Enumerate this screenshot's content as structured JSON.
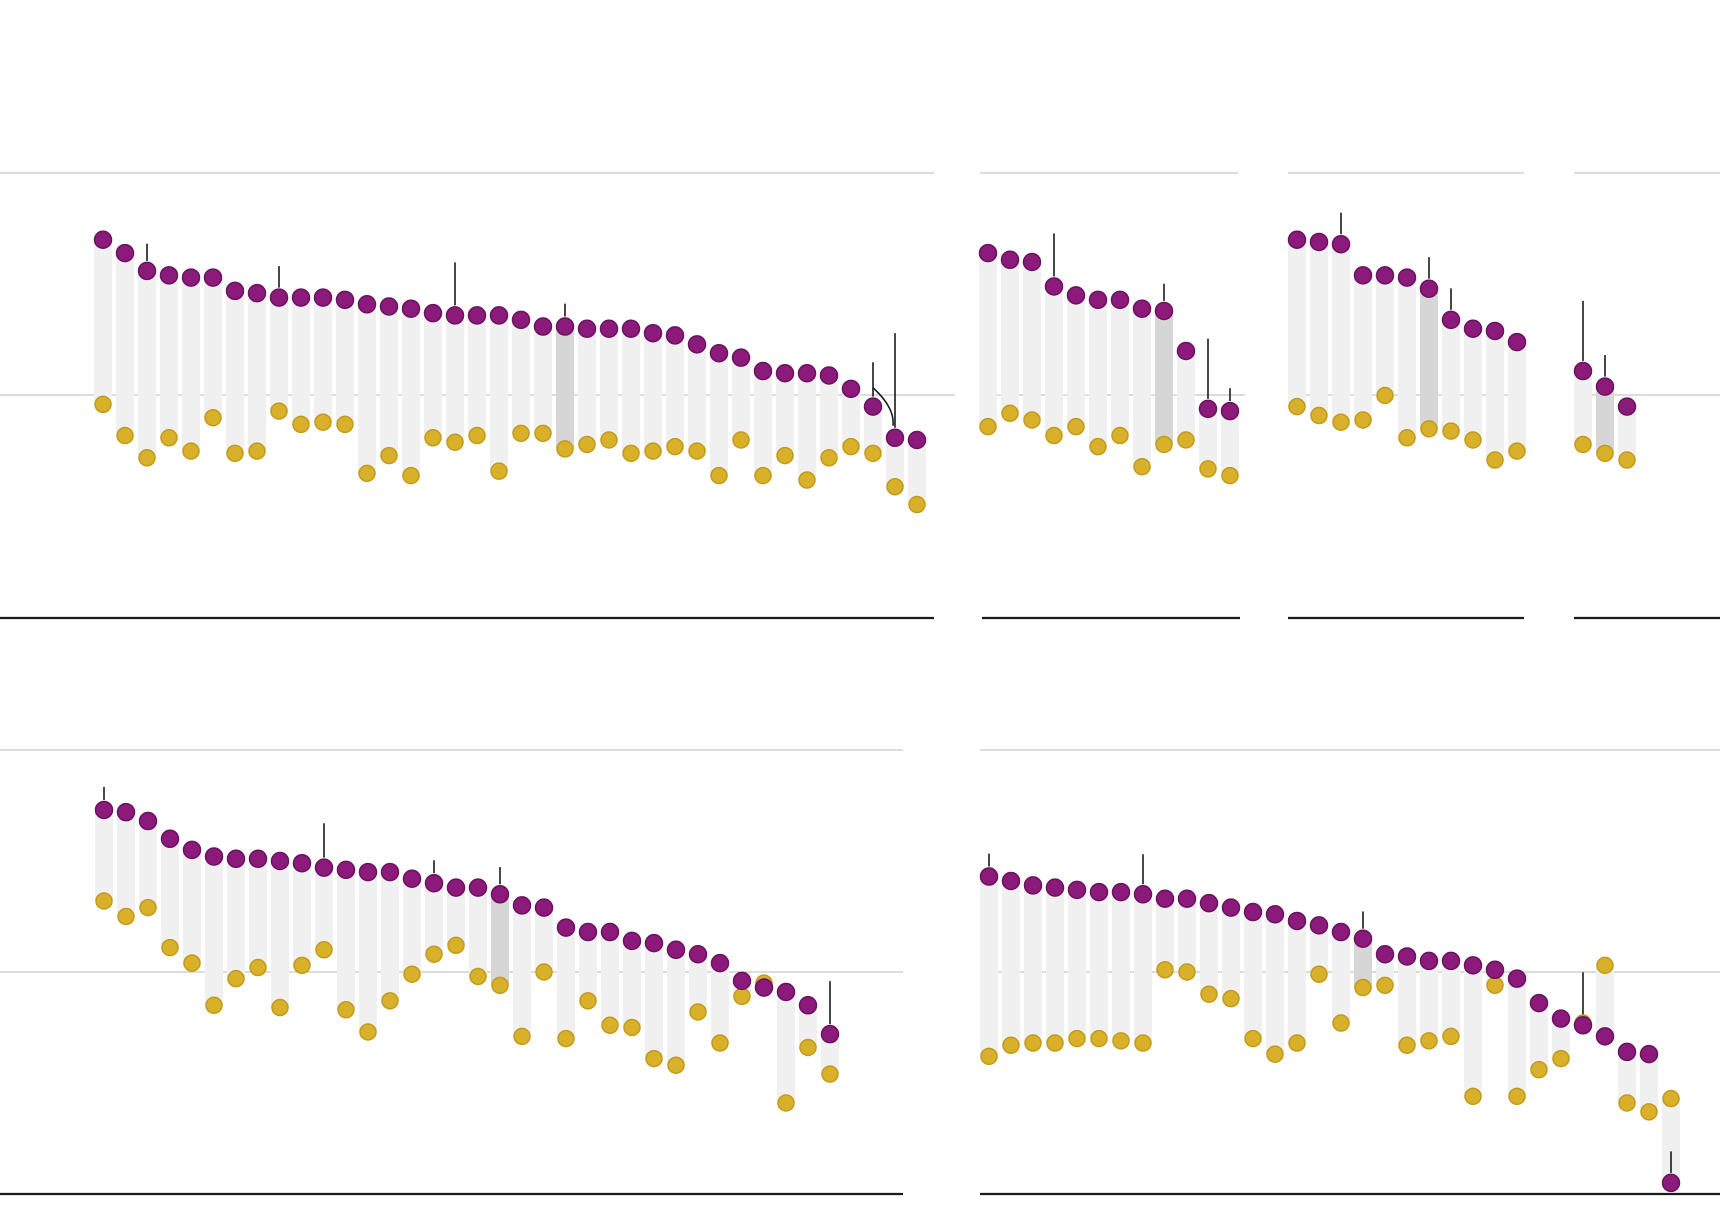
{
  "chart_data": [
    {
      "type": "scatter",
      "title": "",
      "xlabel": "",
      "ylabel": "",
      "ylim": [
        0,
        100
      ],
      "ref_value": 50,
      "grid": false,
      "series": [
        {
          "name": "",
          "color": "#8b1a7a",
          "values": [
            85,
            82,
            78,
            77,
            76.5,
            76.5,
            73.5,
            73,
            72,
            72,
            72,
            71.5,
            70.5,
            70,
            69.5,
            68.5,
            68,
            68,
            68,
            67,
            65.5,
            65.5,
            65,
            65,
            65,
            64,
            63.5,
            61.5,
            59.5,
            58.5,
            55.5,
            55,
            55,
            54.5,
            51.5,
            47.5,
            40.5,
            40
          ]
        },
        {
          "name": "",
          "color": "#d8b02a",
          "values": [
            48,
            41,
            36,
            40.5,
            37.5,
            45,
            37,
            37.5,
            46.5,
            43.5,
            44,
            43.5,
            32.5,
            36.5,
            32,
            40.5,
            39.5,
            41,
            33,
            41.5,
            41.5,
            38,
            39,
            40,
            37,
            37.5,
            38.5,
            37.5,
            32,
            40,
            32,
            36.5,
            31,
            36,
            38.5,
            37,
            29.5,
            25.5
          ]
        }
      ],
      "highlight_index": 21,
      "ticks": [
        {
          "index": 2,
          "len": 4
        },
        {
          "index": 8,
          "len": 5
        },
        {
          "index": 16,
          "len": 10
        },
        {
          "index": 21,
          "len": 3
        },
        {
          "index": 35,
          "len": 8
        },
        {
          "index": 36,
          "len": 22
        }
      ]
    },
    {
      "type": "scatter",
      "title": "",
      "xlabel": "",
      "ylabel": "",
      "ylim": [
        0,
        100
      ],
      "ref_value": 50,
      "grid": false,
      "series": [
        {
          "name": "",
          "color": "#8b1a7a",
          "values": [
            82,
            80.5,
            80,
            74.5,
            72.5,
            71.5,
            71.5,
            69.5,
            69,
            60,
            47,
            46.5
          ]
        },
        {
          "name": "",
          "color": "#d8b02a",
          "values": [
            43,
            46,
            44.5,
            41,
            43,
            38.5,
            41,
            34,
            39,
            40,
            33.5,
            32
          ]
        }
      ],
      "highlight_index": 8,
      "ticks": [
        {
          "index": 3,
          "len": 10
        },
        {
          "index": 8,
          "len": 4
        },
        {
          "index": 10,
          "len": 14
        },
        {
          "index": 11,
          "len": 3
        }
      ]
    },
    {
      "type": "scatter",
      "title": "",
      "xlabel": "",
      "ylabel": "",
      "ylim": [
        0,
        100
      ],
      "ref_value": 50,
      "grid": false,
      "series": [
        {
          "name": "",
          "color": "#8b1a7a",
          "values": [
            85,
            84.5,
            84,
            77,
            77,
            76.5,
            74,
            67,
            65,
            64.5,
            62
          ]
        },
        {
          "name": "",
          "color": "#d8b02a",
          "values": [
            47.5,
            45.5,
            44,
            44.5,
            50,
            40.5,
            42.5,
            42,
            40,
            35.5,
            37.5
          ]
        }
      ],
      "highlight_index": 6,
      "ticks": [
        {
          "index": 2,
          "len": 5
        },
        {
          "index": 6,
          "len": 5
        },
        {
          "index": 7,
          "len": 5
        }
      ]
    },
    {
      "type": "scatter",
      "title": "",
      "xlabel": "",
      "ylabel": "",
      "ylim": [
        0,
        100
      ],
      "ref_value": 50,
      "grid": false,
      "series": [
        {
          "name": "",
          "color": "#8b1a7a",
          "values": [
            55.5,
            52,
            47.5
          ]
        },
        {
          "name": "",
          "color": "#d8b02a",
          "values": [
            39,
            37,
            35.5
          ]
        }
      ],
      "highlight_index": 1,
      "ticks": [
        {
          "index": 0,
          "len": 14
        },
        {
          "index": 1,
          "len": 5
        }
      ]
    },
    {
      "type": "scatter",
      "title": "",
      "xlabel": "",
      "ylabel": "",
      "ylim": [
        0,
        100
      ],
      "ref_value": 50,
      "grid": false,
      "series": [
        {
          "name": "",
          "color": "#8b1a7a",
          "values": [
            86.5,
            86,
            84,
            80,
            77.5,
            76,
            75.5,
            75.5,
            75,
            74.5,
            73.5,
            73,
            72.5,
            72.5,
            71,
            70,
            69,
            69,
            67.5,
            65,
            64.5,
            60,
            59,
            59,
            57,
            56.5,
            55,
            54,
            52,
            48,
            46.5,
            45.5,
            42.5,
            36
          ]
        },
        {
          "name": "",
          "color": "#d8b02a",
          "values": [
            66,
            62.5,
            64.5,
            55.5,
            52,
            42.5,
            48.5,
            51,
            42,
            51.5,
            55,
            41.5,
            36.5,
            43.5,
            49.5,
            54,
            56,
            49,
            47,
            35.5,
            50,
            35,
            43.5,
            38,
            37.5,
            30.5,
            29,
            41,
            34,
            44.5,
            47.5,
            20.5,
            33,
            27
          ]
        }
      ],
      "highlight_index": 18,
      "ticks": [
        {
          "index": 0,
          "len": 3
        },
        {
          "index": 10,
          "len": 8
        },
        {
          "index": 15,
          "len": 3
        },
        {
          "index": 18,
          "len": 4
        },
        {
          "index": 33,
          "len": 10
        }
      ]
    },
    {
      "type": "scatter",
      "title": "",
      "xlabel": "",
      "ylabel": "",
      "ylim": [
        0,
        100
      ],
      "ref_value": 50,
      "grid": false,
      "series": [
        {
          "name": "",
          "color": "#8b1a7a",
          "values": [
            71.5,
            70.5,
            69.5,
            69,
            68.5,
            68,
            68,
            67.5,
            66.5,
            66.5,
            65.5,
            64.5,
            63.5,
            63,
            61.5,
            60.5,
            59,
            57.5,
            54,
            53.5,
            52.5,
            52.5,
            51.5,
            50.5,
            48.5,
            43,
            39.5,
            38,
            35.5,
            32,
            31.5,
            2.5
          ]
        },
        {
          "name": "",
          "color": "#d8b02a",
          "values": [
            31,
            33.5,
            34,
            34,
            35,
            35,
            34.5,
            34,
            50.5,
            50,
            45,
            44,
            35,
            31.5,
            34,
            49.5,
            38.5,
            46.5,
            47,
            33.5,
            34.5,
            35.5,
            22,
            47,
            22,
            28,
            30.5,
            38.5,
            51.5,
            20.5,
            18.5,
            21.5
          ]
        }
      ],
      "highlight_index": 17,
      "ticks": [
        {
          "index": 0,
          "len": 3
        },
        {
          "index": 7,
          "len": 7
        },
        {
          "index": 17,
          "len": 4
        },
        {
          "index": 27,
          "len": 10
        },
        {
          "index": 31,
          "len": 5
        }
      ]
    }
  ]
}
